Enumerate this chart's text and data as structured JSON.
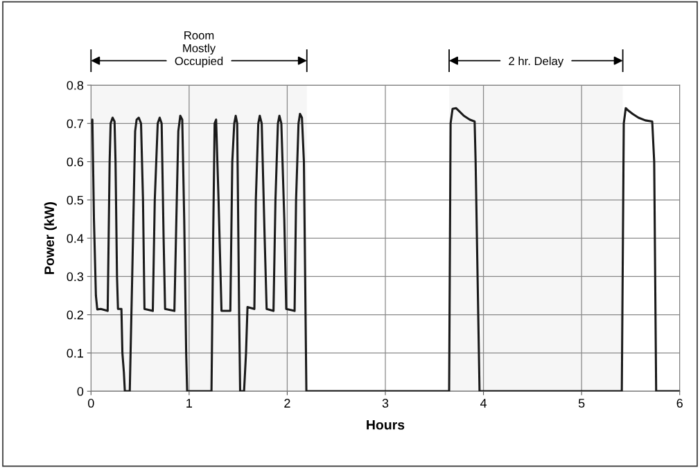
{
  "chart_data": {
    "type": "line",
    "xlabel": "Hours",
    "ylabel": "Power (kW)",
    "xlim": [
      0,
      6
    ],
    "ylim": [
      0,
      0.8
    ],
    "xticks": [
      0,
      1,
      2,
      3,
      4,
      5,
      6
    ],
    "yticks": [
      0,
      0.1,
      0.2,
      0.3,
      0.4,
      0.5,
      0.6,
      0.7,
      0.8
    ],
    "grid": true,
    "line_style": "solid",
    "marker": "none",
    "bands": [
      {
        "axis": "x",
        "from": 0,
        "to": 2.2,
        "label": "Room\nMostly\nOccupied",
        "color": "#f6f6f6"
      },
      {
        "axis": "x",
        "from": 3.65,
        "to": 5.42,
        "label": "2 hr. Delay",
        "color": "#f6f6f6"
      }
    ],
    "series": [
      {
        "color": "#1a1a1a",
        "x": [
          0.01,
          0.014,
          0.03,
          0.05,
          0.064,
          0.1,
          0.17,
          0.19,
          0.2,
          0.22,
          0.24,
          0.25,
          0.265,
          0.275,
          0.31,
          0.32,
          0.335,
          0.345,
          0.395,
          0.42,
          0.45,
          0.465,
          0.487,
          0.51,
          0.53,
          0.545,
          0.63,
          0.65,
          0.68,
          0.7,
          0.72,
          0.74,
          0.755,
          0.85,
          0.87,
          0.89,
          0.91,
          0.93,
          0.95,
          0.97,
          0.98,
          1.228,
          1.245,
          1.26,
          1.275,
          1.3,
          1.33,
          1.42,
          1.44,
          1.46,
          1.475,
          1.49,
          1.51,
          1.52,
          1.56,
          1.58,
          1.595,
          1.665,
          1.68,
          1.705,
          1.72,
          1.74,
          1.77,
          1.79,
          1.86,
          1.88,
          1.905,
          1.92,
          1.94,
          1.97,
          1.99,
          2.075,
          2.09,
          2.115,
          2.13,
          2.15,
          2.17,
          2.195,
          3.65,
          3.665,
          3.685,
          3.72,
          3.76,
          3.8,
          3.86,
          3.91,
          3.92,
          3.96,
          5.41,
          5.43,
          5.45,
          5.47,
          5.52,
          5.58,
          5.65,
          5.72,
          5.74,
          5.76,
          6.0
        ],
        "values": [
          0.7,
          0.71,
          0.45,
          0.25,
          0.214,
          0.215,
          0.21,
          0.6,
          0.7,
          0.715,
          0.705,
          0.6,
          0.3,
          0.215,
          0.215,
          0.1,
          0.05,
          0,
          0,
          0.3,
          0.68,
          0.71,
          0.715,
          0.7,
          0.5,
          0.215,
          0.21,
          0.5,
          0.7,
          0.715,
          0.7,
          0.4,
          0.215,
          0.21,
          0.45,
          0.68,
          0.72,
          0.71,
          0.45,
          0.1,
          0,
          0,
          0.4,
          0.7,
          0.71,
          0.5,
          0.21,
          0.21,
          0.6,
          0.7,
          0.72,
          0.7,
          0.2,
          0,
          0,
          0.1,
          0.22,
          0.215,
          0.5,
          0.7,
          0.72,
          0.7,
          0.4,
          0.215,
          0.21,
          0.5,
          0.7,
          0.72,
          0.7,
          0.45,
          0.215,
          0.21,
          0.5,
          0.7,
          0.725,
          0.715,
          0.6,
          0,
          0,
          0.7,
          0.738,
          0.74,
          0.73,
          0.72,
          0.71,
          0.705,
          0.6,
          0,
          0,
          0.7,
          0.74,
          0.735,
          0.725,
          0.715,
          0.708,
          0.705,
          0.6,
          0,
          0
        ]
      }
    ]
  }
}
